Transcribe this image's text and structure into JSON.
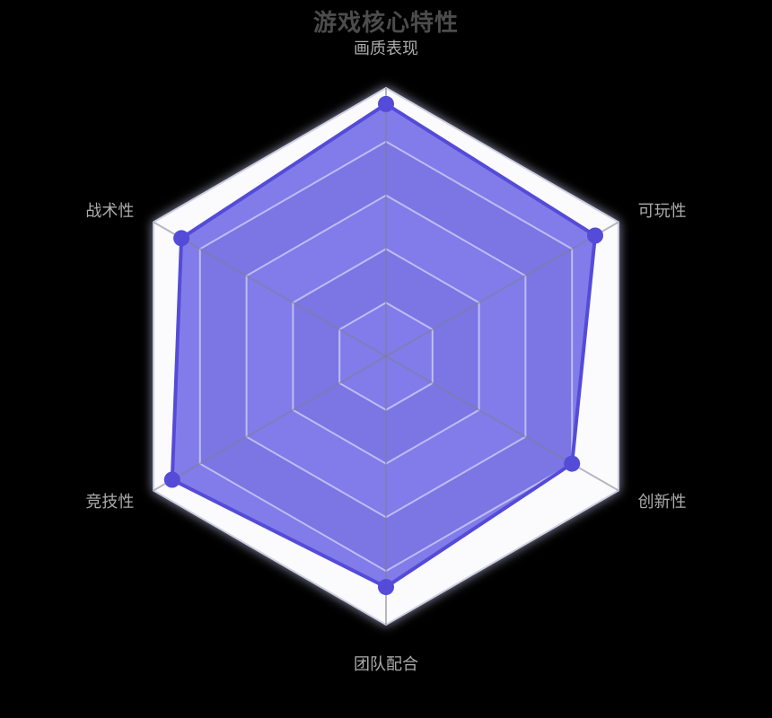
{
  "page": {
    "background": "#000000"
  },
  "title": {
    "text": "游戏核心特性",
    "color": "#4c4c4c"
  },
  "chart_data": {
    "type": "radar",
    "title": "游戏核心特性",
    "shape": "hexagon",
    "indicators": [
      "画质表现",
      "可玩性",
      "创新性",
      "团队配合",
      "竞技性",
      "战术性"
    ],
    "series": [
      {
        "name": "游戏核心特性",
        "values": [
          9.4,
          9.0,
          8.0,
          8.6,
          9.2,
          8.8
        ]
      }
    ],
    "max": 10,
    "ring_count": 5,
    "legend": "none",
    "grid": "on"
  },
  "palette": {
    "series_fill": "rgba(88,82,226,0.75)",
    "series_line": "#544bd8",
    "point_color": "#544bd8",
    "band_light": "#fbfbfd",
    "band_dark": "#e3e3ea",
    "grid_line": "rgba(255,255,255,0.5)",
    "axis_spoke": "rgba(125,125,150,0.55)",
    "outer_edge": "#cfcfe4",
    "axis_label_color": "#ababab",
    "title_color": "#4c4c4c",
    "background": "#000000"
  }
}
